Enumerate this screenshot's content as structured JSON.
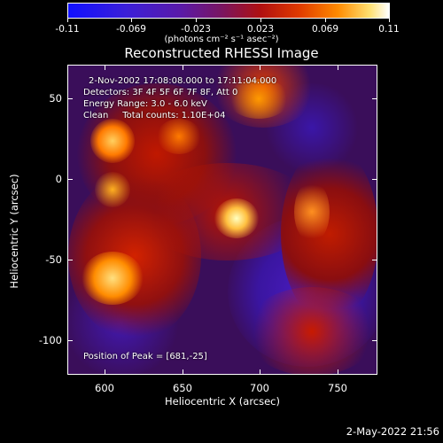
{
  "colorbar": {
    "ticks": [
      "-0.11",
      "-0.069",
      "-0.023",
      "0.023",
      "0.069",
      "0.11"
    ],
    "units": "(photons cm⁻² s⁻¹ asec⁻²)"
  },
  "plot": {
    "title": "Reconstructed RHESSI Image",
    "info": {
      "time": "2-Nov-2002 17:08:08.000 to 17:11:04.000",
      "detectors": "Detectors: 3F 4F 5F 6F 7F 8F, Att 0",
      "energy": "Energy Range: 3.0 - 6.0 keV",
      "clean": "Clean     Total counts: 1.10E+04"
    },
    "peak": "Position of Peak = [681,-25]",
    "x_title": "Heliocentric X (arcsec)",
    "y_title": "Heliocentric Y (arcsec)",
    "x_ticks": [
      "600",
      "650",
      "700",
      "750"
    ],
    "y_ticks": [
      "50",
      "0",
      "-50",
      "-100"
    ]
  },
  "footer": {
    "date": "2-May-2022 21:56"
  }
}
